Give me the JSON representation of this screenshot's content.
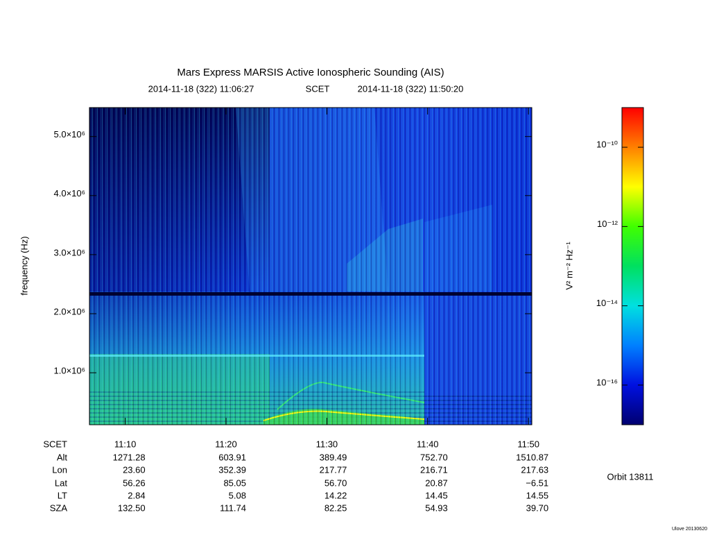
{
  "chart_data": {
    "type": "spectrogram",
    "title": "Mars Express MARSIS Active Ionospheric Sounding (AIS)",
    "start_time": "2014-11-18 (322) 11:06:27",
    "time_system": "SCET",
    "end_time": "2014-11-18 (322) 11:50:20",
    "ylabel": "frequency (Hz)",
    "xlim": [
      666.45,
      710.333
    ],
    "xticks": [
      {
        "value": 670,
        "label": "11:10"
      },
      {
        "value": 680,
        "label": "11:20"
      },
      {
        "value": 690,
        "label": "11:30"
      },
      {
        "value": 700,
        "label": "11:40"
      },
      {
        "value": 710,
        "label": "11:50"
      }
    ],
    "ylim": [
      120000,
      5490000
    ],
    "yticks": [
      {
        "value": 1000000,
        "label": "1.0×10⁶"
      },
      {
        "value": 2000000,
        "label": "2.0×10⁶"
      },
      {
        "value": 3000000,
        "label": "3.0×10⁶"
      },
      {
        "value": 4000000,
        "label": "4.0×10⁶"
      },
      {
        "value": 5000000,
        "label": "5.0×10⁶"
      }
    ],
    "colorbar": {
      "label": "V² m⁻² Hz⁻¹",
      "scale": "log",
      "lim": [
        1e-17,
        1e-09
      ],
      "ticks": [
        {
          "value": 1e-10,
          "label": "10⁻¹⁰"
        },
        {
          "value": 1e-12,
          "label": "10⁻¹²"
        },
        {
          "value": 1e-14,
          "label": "10⁻¹⁴"
        },
        {
          "value": 1e-16,
          "label": "10⁻¹⁶"
        }
      ],
      "colors": [
        "#000070",
        "#0010e0",
        "#0080ff",
        "#00e0e0",
        "#00e060",
        "#40ff00",
        "#ffff00",
        "#ff8000",
        "#ff0000"
      ]
    }
  },
  "ephemeris": {
    "rows": [
      {
        "name": "Alt",
        "values": [
          "1271.28",
          "603.91",
          "389.49",
          "752.70",
          "1510.87"
        ]
      },
      {
        "name": "Lon",
        "values": [
          "23.60",
          "352.39",
          "217.77",
          "216.71",
          "217.63"
        ]
      },
      {
        "name": "Lat",
        "values": [
          "56.26",
          "85.05",
          "56.70",
          "20.87",
          "−6.51"
        ]
      },
      {
        "name": "LT",
        "values": [
          "2.84",
          "5.08",
          "14.22",
          "14.45",
          "14.55"
        ]
      },
      {
        "name": "SZA",
        "values": [
          "132.50",
          "111.74",
          "82.25",
          "54.93",
          "39.70"
        ]
      }
    ]
  },
  "orbit": "Orbit 13811",
  "footer": "Ulove 20130620"
}
